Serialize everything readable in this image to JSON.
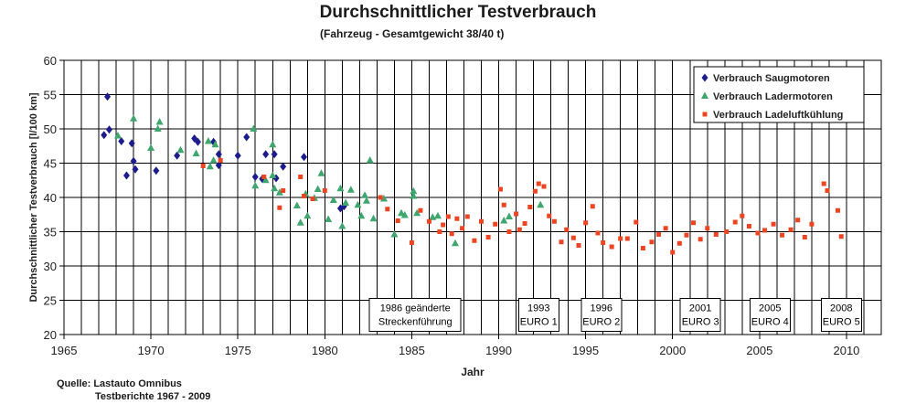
{
  "chart_data": {
    "type": "scatter",
    "title": "Durchschnittlicher Testverbrauch",
    "subtitle": "(Fahrzeug - Gesamtgewicht 38/40 t)",
    "xlabel": "Jahr",
    "ylabel": "Durchschnittlicher Testverbrauch [l/100 km]",
    "xlim": [
      1965,
      2012
    ],
    "ylim": [
      20,
      60
    ],
    "xticks": [
      1965,
      1970,
      1975,
      1980,
      1985,
      1990,
      1995,
      2000,
      2005,
      2010
    ],
    "yticks": [
      20,
      25,
      30,
      35,
      40,
      45,
      50,
      55,
      60
    ],
    "grid": true,
    "legend_position": "top-right",
    "series": [
      {
        "name": "Verbrauch Saugmotoren",
        "marker": "diamond",
        "color": "#1c1c8c",
        "points": [
          [
            1967.3,
            49.1
          ],
          [
            1967.5,
            54.7
          ],
          [
            1967.6,
            49.9
          ],
          [
            1968.3,
            48.2
          ],
          [
            1968.6,
            43.2
          ],
          [
            1968.9,
            47.9
          ],
          [
            1969.0,
            45.3
          ],
          [
            1969.1,
            44.1
          ],
          [
            1970.3,
            43.9
          ],
          [
            1971.5,
            46.1
          ],
          [
            1972.5,
            48.6
          ],
          [
            1972.7,
            48.1
          ],
          [
            1973.6,
            48.1
          ],
          [
            1973.9,
            46.3
          ],
          [
            1973.9,
            44.7
          ],
          [
            1975.0,
            46.1
          ],
          [
            1975.5,
            48.8
          ],
          [
            1976.0,
            43.0
          ],
          [
            1976.4,
            42.7
          ],
          [
            1976.6,
            46.3
          ],
          [
            1977.1,
            46.3
          ],
          [
            1977.2,
            42.8
          ],
          [
            1977.6,
            44.5
          ],
          [
            1978.8,
            45.9
          ],
          [
            1980.9,
            38.4
          ],
          [
            1981.1,
            38.7
          ]
        ]
      },
      {
        "name": "Verbrauch Ladermotoren",
        "marker": "triangle",
        "color": "#3fa66e",
        "points": [
          [
            1968.1,
            49.0
          ],
          [
            1969.0,
            51.5
          ],
          [
            1970.0,
            47.2
          ],
          [
            1970.4,
            50.0
          ],
          [
            1970.5,
            51.0
          ],
          [
            1971.7,
            46.9
          ],
          [
            1972.6,
            46.4
          ],
          [
            1973.3,
            48.2
          ],
          [
            1973.4,
            44.5
          ],
          [
            1973.6,
            45.4
          ],
          [
            1973.7,
            47.7
          ],
          [
            1975.9,
            50.0
          ],
          [
            1976.0,
            41.7
          ],
          [
            1976.6,
            42.5
          ],
          [
            1977.0,
            47.7
          ],
          [
            1977.0,
            43.2
          ],
          [
            1977.1,
            41.3
          ],
          [
            1977.4,
            40.7
          ],
          [
            1978.4,
            38.8
          ],
          [
            1978.6,
            36.3
          ],
          [
            1978.9,
            40.5
          ],
          [
            1979.0,
            37.3
          ],
          [
            1979.4,
            39.9
          ],
          [
            1979.6,
            41.2
          ],
          [
            1979.8,
            43.5
          ],
          [
            1980.2,
            36.8
          ],
          [
            1980.5,
            39.6
          ],
          [
            1980.9,
            41.3
          ],
          [
            1981.0,
            35.8
          ],
          [
            1981.2,
            39.2
          ],
          [
            1981.5,
            41.1
          ],
          [
            1981.9,
            38.9
          ],
          [
            1982.1,
            37.3
          ],
          [
            1982.3,
            40.3
          ],
          [
            1982.4,
            39.5
          ],
          [
            1982.6,
            45.4
          ],
          [
            1982.8,
            36.9
          ],
          [
            1983.4,
            39.8
          ],
          [
            1984.0,
            34.6
          ],
          [
            1984.4,
            37.7
          ],
          [
            1984.6,
            37.4
          ],
          [
            1985.1,
            40.9
          ],
          [
            1985.1,
            40.2
          ],
          [
            1985.3,
            37.7
          ],
          [
            1986.2,
            37.1
          ],
          [
            1986.5,
            37.3
          ],
          [
            1987.5,
            33.3
          ],
          [
            1990.3,
            36.6
          ],
          [
            1990.6,
            37.2
          ],
          [
            1992.4,
            38.9
          ]
        ]
      },
      {
        "name": "Verbrauch Ladeluftkühlung",
        "marker": "square",
        "color": "#ee4422",
        "points": [
          [
            1973.0,
            44.6
          ],
          [
            1974.0,
            45.4
          ],
          [
            1976.5,
            43.0
          ],
          [
            1977.4,
            38.5
          ],
          [
            1977.6,
            41.0
          ],
          [
            1978.6,
            43.0
          ],
          [
            1978.8,
            40.2
          ],
          [
            1979.3,
            39.8
          ],
          [
            1980.0,
            41.0
          ],
          [
            1983.2,
            40.0
          ],
          [
            1983.6,
            38.3
          ],
          [
            1984.2,
            36.6
          ],
          [
            1985.0,
            33.4
          ],
          [
            1985.5,
            38.1
          ],
          [
            1986.0,
            36.5
          ],
          [
            1986.6,
            35.0
          ],
          [
            1986.8,
            36.0
          ],
          [
            1987.1,
            37.2
          ],
          [
            1987.3,
            34.7
          ],
          [
            1987.6,
            36.9
          ],
          [
            1987.9,
            35.5
          ],
          [
            1988.2,
            37.2
          ],
          [
            1988.6,
            33.7
          ],
          [
            1989.0,
            36.5
          ],
          [
            1989.4,
            34.2
          ],
          [
            1989.8,
            36.1
          ],
          [
            1990.1,
            41.2
          ],
          [
            1990.3,
            38.9
          ],
          [
            1990.6,
            35.0
          ],
          [
            1991.0,
            37.6
          ],
          [
            1991.2,
            35.3
          ],
          [
            1991.5,
            36.2
          ],
          [
            1991.8,
            38.6
          ],
          [
            1992.1,
            40.9
          ],
          [
            1992.3,
            42.0
          ],
          [
            1992.6,
            41.6
          ],
          [
            1992.9,
            37.3
          ],
          [
            1993.2,
            36.5
          ],
          [
            1993.6,
            33.5
          ],
          [
            1993.9,
            35.3
          ],
          [
            1994.3,
            34.1
          ],
          [
            1994.6,
            33.0
          ],
          [
            1995.0,
            36.3
          ],
          [
            1995.4,
            38.7
          ],
          [
            1995.7,
            34.8
          ],
          [
            1996.0,
            33.4
          ],
          [
            1996.5,
            32.8
          ],
          [
            1997.0,
            34.0
          ],
          [
            1997.4,
            34.0
          ],
          [
            1997.9,
            36.4
          ],
          [
            1998.3,
            32.6
          ],
          [
            1998.8,
            33.5
          ],
          [
            1999.2,
            34.6
          ],
          [
            1999.6,
            35.5
          ],
          [
            2000.0,
            32.0
          ],
          [
            2000.4,
            33.3
          ],
          [
            2000.8,
            34.5
          ],
          [
            2001.2,
            36.3
          ],
          [
            2001.6,
            33.9
          ],
          [
            2002.0,
            35.5
          ],
          [
            2002.5,
            34.6
          ],
          [
            2003.1,
            35.0
          ],
          [
            2003.6,
            36.4
          ],
          [
            2004.0,
            37.3
          ],
          [
            2004.4,
            35.8
          ],
          [
            2004.9,
            34.8
          ],
          [
            2005.3,
            35.2
          ],
          [
            2005.8,
            36.1
          ],
          [
            2006.3,
            34.5
          ],
          [
            2006.8,
            35.3
          ],
          [
            2007.2,
            36.7
          ],
          [
            2007.6,
            34.2
          ],
          [
            2008.0,
            36.1
          ],
          [
            2008.7,
            42.0
          ],
          [
            2008.9,
            41.0
          ],
          [
            2009.5,
            38.1
          ],
          [
            2009.7,
            34.3
          ]
        ]
      }
    ],
    "annotations": [
      {
        "x": 1985.2,
        "lines": [
          "1986 geänderte",
          "Streckenführung"
        ]
      },
      {
        "x": 1992.3,
        "lines": [
          "1993",
          "EURO 1"
        ]
      },
      {
        "x": 1995.9,
        "lines": [
          "1996",
          "EURO 2"
        ]
      },
      {
        "x": 2001.6,
        "lines": [
          "2001",
          "EURO 3"
        ]
      },
      {
        "x": 2005.6,
        "lines": [
          "2005",
          "EURO 4"
        ]
      },
      {
        "x": 2009.7,
        "lines": [
          "2008",
          "EURO 5"
        ]
      }
    ],
    "annotation_y": 24.5,
    "source": [
      "Quelle: Lastauto Omnibus",
      "Testberichte 1967 - 2009"
    ]
  }
}
